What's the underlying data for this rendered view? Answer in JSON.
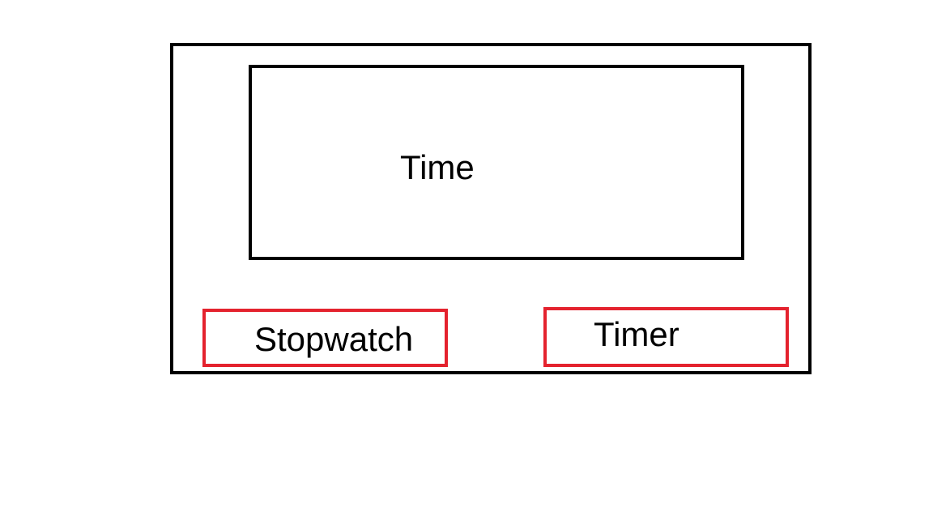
{
  "display": {
    "time_label": "Time"
  },
  "modes": {
    "stopwatch_label": "Stopwatch",
    "timer_label": "Timer"
  },
  "colors": {
    "frame_border": "#000000",
    "button_border": "#e4222e",
    "background": "#ffffff"
  }
}
